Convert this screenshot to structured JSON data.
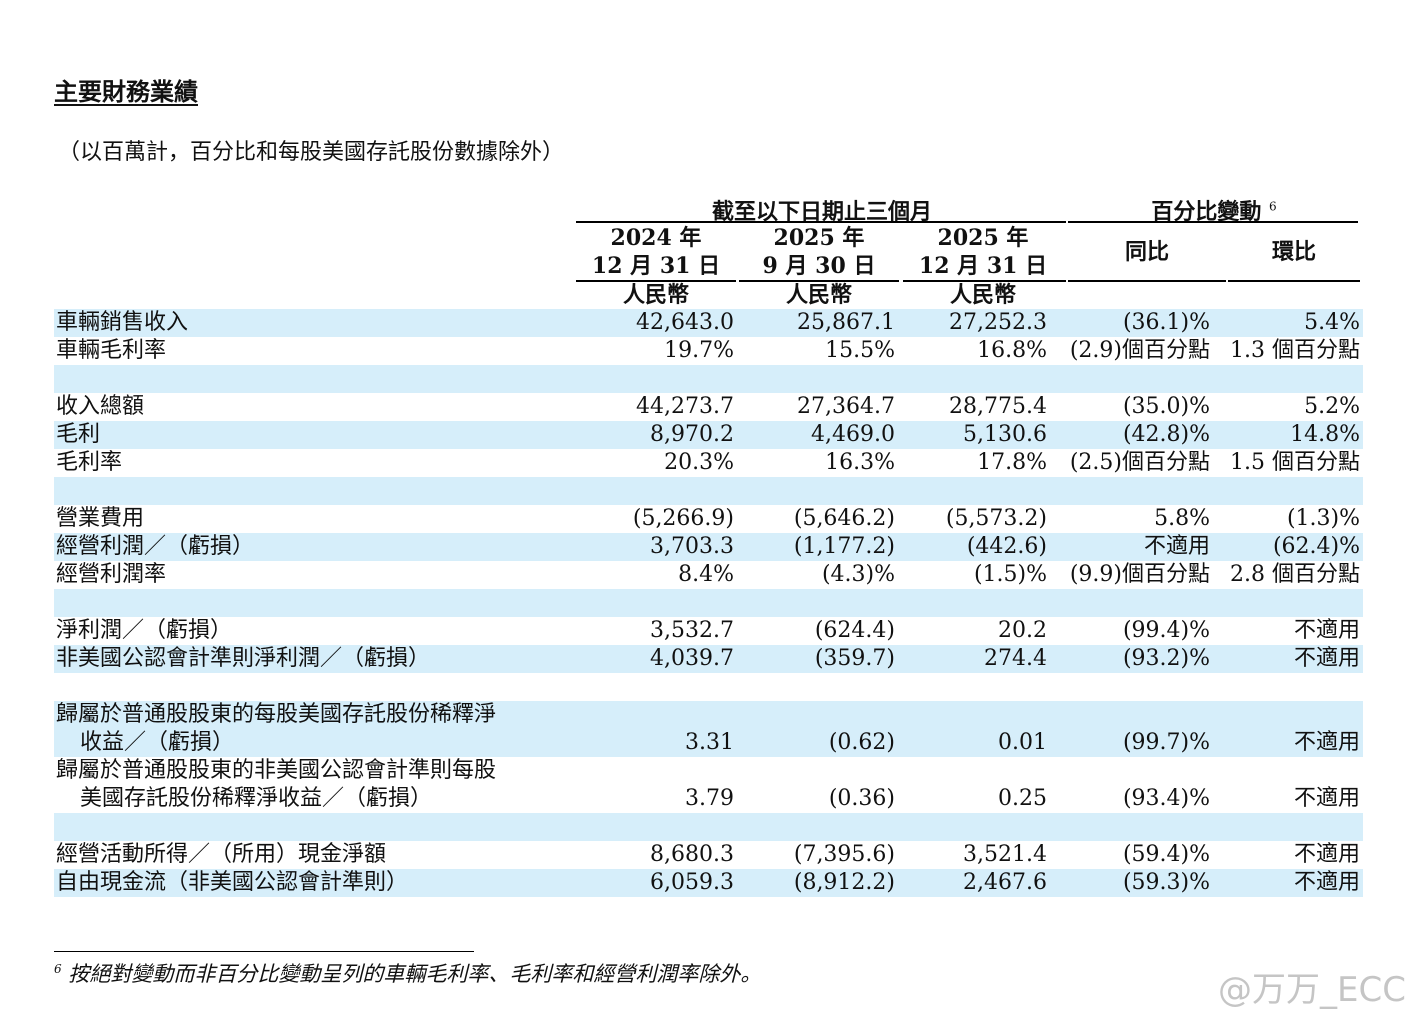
{
  "title": "主要財務業績",
  "subtitle": "（以百萬計，百分比和每股美國存託股份數據除外）",
  "header": {
    "group_period": "截至以下日期止三個月",
    "group_change": "百分比變動",
    "group_change_sup": "6",
    "columns": [
      {
        "year": "2024 年",
        "date": "12 月 31 日",
        "currency": "人民幣"
      },
      {
        "year": "2025 年",
        "date": "9 月 30 日",
        "currency": "人民幣"
      },
      {
        "year": "2025 年",
        "date": "12 月 31 日",
        "currency": "人民幣"
      }
    ],
    "yoy": "同比",
    "qoq": "環比"
  },
  "rows": [
    {
      "label": "車輛銷售收入",
      "c1": "42,643.0",
      "c2": "25,867.1",
      "c3": "27,252.3",
      "yoy": "(36.1)%",
      "qoq": "5.4%"
    },
    {
      "label": "車輛毛利率",
      "c1": "19.7%",
      "c2": "15.5%",
      "c3": "16.8%",
      "yoy": "(2.9)個百分點",
      "qoq": "1.3 個百分點"
    },
    {
      "label": "收入總額",
      "c1": "44,273.7",
      "c2": "27,364.7",
      "c3": "28,775.4",
      "yoy": "(35.0)%",
      "qoq": "5.2%"
    },
    {
      "label": "毛利",
      "c1": "8,970.2",
      "c2": "4,469.0",
      "c3": "5,130.6",
      "yoy": "(42.8)%",
      "qoq": "14.8%"
    },
    {
      "label": "毛利率",
      "c1": "20.3%",
      "c2": "16.3%",
      "c3": "17.8%",
      "yoy": "(2.5)個百分點",
      "qoq": "1.5 個百分點"
    },
    {
      "label": "營業費用",
      "c1": "(5,266.9)",
      "c2": "(5,646.2)",
      "c3": "(5,573.2)",
      "yoy": "5.8%",
      "qoq": "(1.3)%"
    },
    {
      "label": "經營利潤／（虧損）",
      "c1": "3,703.3",
      "c2": "(1,177.2)",
      "c3": "(442.6)",
      "yoy": "不適用",
      "qoq": "(62.4)%"
    },
    {
      "label": "經營利潤率",
      "c1": "8.4%",
      "c2": "(4.3)%",
      "c3": "(1.5)%",
      "yoy": "(9.9)個百分點",
      "qoq": "2.8 個百分點"
    },
    {
      "label": "淨利潤／（虧損）",
      "c1": "3,532.7",
      "c2": "(624.4)",
      "c3": "20.2",
      "yoy": "(99.4)%",
      "qoq": "不適用"
    },
    {
      "label": "非美國公認會計準則淨利潤／（虧損）",
      "c1": "4,039.7",
      "c2": "(359.7)",
      "c3": "274.4",
      "yoy": "(93.2)%",
      "qoq": "不適用"
    },
    {
      "label": "歸屬於普通股股東的每股美國存託股份稀釋淨",
      "label2": "收益／（虧損）",
      "c1": "3.31",
      "c2": "(0.62)",
      "c3": "0.01",
      "yoy": "(99.7)%",
      "qoq": "不適用"
    },
    {
      "label": "歸屬於普通股股東的非美國公認會計準則每股",
      "label2": "美國存託股份稀釋淨收益／（虧損）",
      "c1": "3.79",
      "c2": "(0.36)",
      "c3": "0.25",
      "yoy": "(93.4)%",
      "qoq": "不適用"
    },
    {
      "label": "經營活動所得／（所用）現金淨額",
      "c1": "8,680.3",
      "c2": "(7,395.6)",
      "c3": "3,521.4",
      "yoy": "(59.4)%",
      "qoq": "不適用"
    },
    {
      "label": "自由現金流（非美國公認會計準則）",
      "c1": "6,059.3",
      "c2": "(8,912.2)",
      "c3": "2,467.6",
      "yoy": "(59.3)%",
      "qoq": "不適用"
    }
  ],
  "footnote": {
    "mark": "6",
    "text": "按絕對變動而非百分比變動呈列的車輛毛利率、毛利率和經營利潤率除外。"
  },
  "watermark": "@万万_ECC"
}
